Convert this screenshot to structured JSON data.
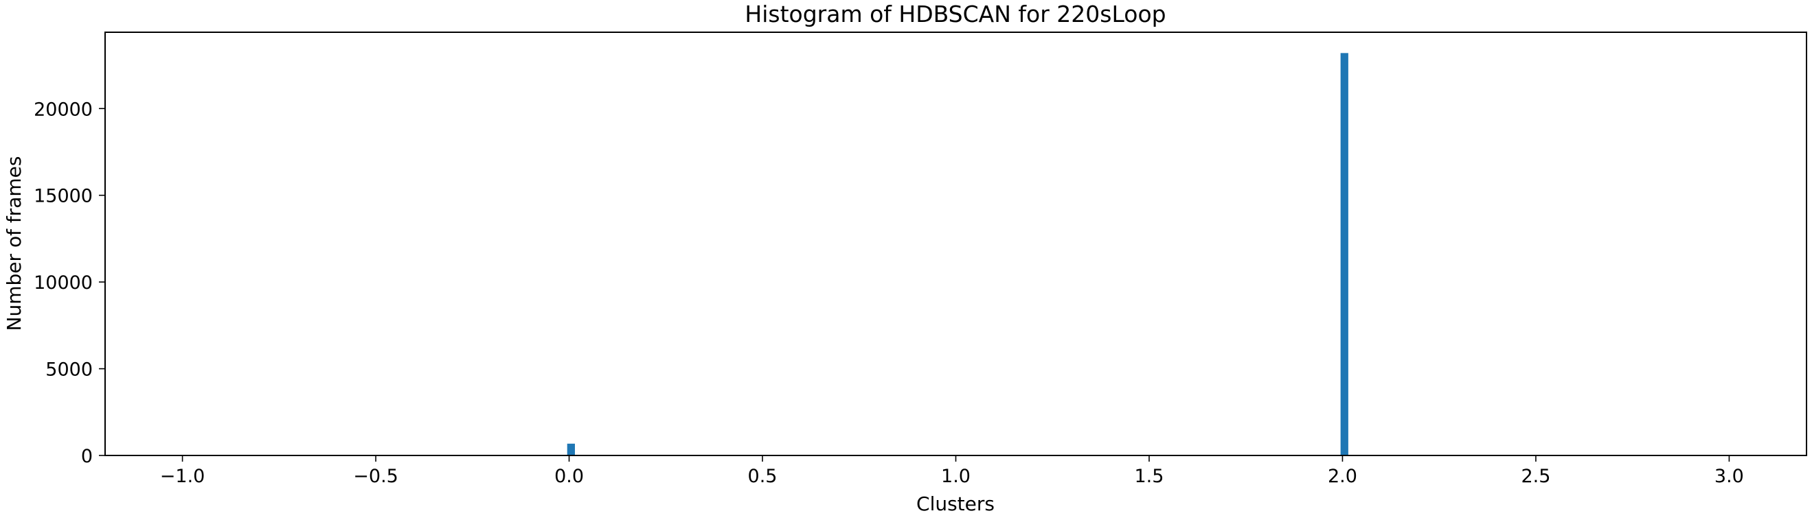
{
  "chart_data": {
    "type": "bar",
    "title": "Histogram of HDBSCAN for 220sLoop",
    "xlabel": "Clusters",
    "ylabel": "Number of frames",
    "xlim": [
      -1.2,
      3.2
    ],
    "ylim": [
      0,
      24400
    ],
    "x_ticks": [
      -1.0,
      -0.5,
      0.0,
      0.5,
      1.0,
      1.5,
      2.0,
      2.5,
      3.0
    ],
    "x_tick_labels": [
      "−1.0",
      "−0.5",
      "0.0",
      "0.5",
      "1.0",
      "1.5",
      "2.0",
      "2.5",
      "3.0"
    ],
    "y_ticks": [
      0,
      5000,
      10000,
      15000,
      20000
    ],
    "y_tick_labels": [
      "0",
      "5000",
      "10000",
      "15000",
      "20000"
    ],
    "bar_color": "#1f77b4",
    "grid": false,
    "legend": "none",
    "bins": [
      {
        "x0": -0.005,
        "x1": 0.015,
        "value": 680
      },
      {
        "x0": 1.995,
        "x1": 2.015,
        "value": 23200
      }
    ]
  }
}
